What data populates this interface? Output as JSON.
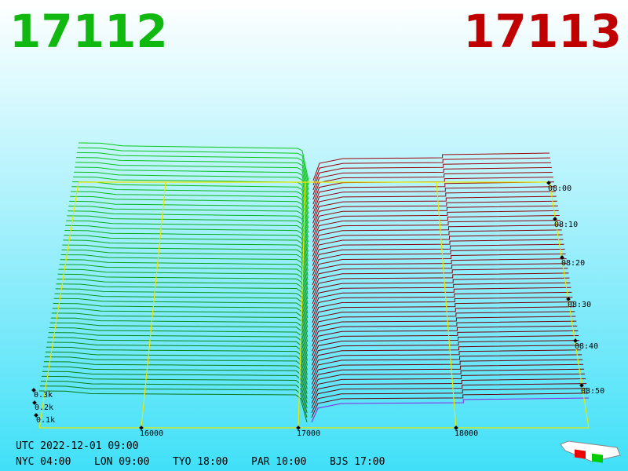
{
  "header": {
    "bid": "17112",
    "ask": "17113"
  },
  "axes": {
    "price_ticks": [
      "16000",
      "17000",
      "18000"
    ],
    "depth_ticks": [
      "0.3k",
      "0.2k",
      "0.1k"
    ],
    "time_ticks": [
      "08:00",
      "08:10",
      "08:20",
      "08:30",
      "08:40",
      "08:50"
    ]
  },
  "clock": {
    "utc": "UTC 2022-12-01 09:00",
    "cities": [
      "NYC 04:00",
      "LON 09:00",
      "TYO 18:00",
      "PAR 10:00",
      "BJS 17:00"
    ]
  }
}
